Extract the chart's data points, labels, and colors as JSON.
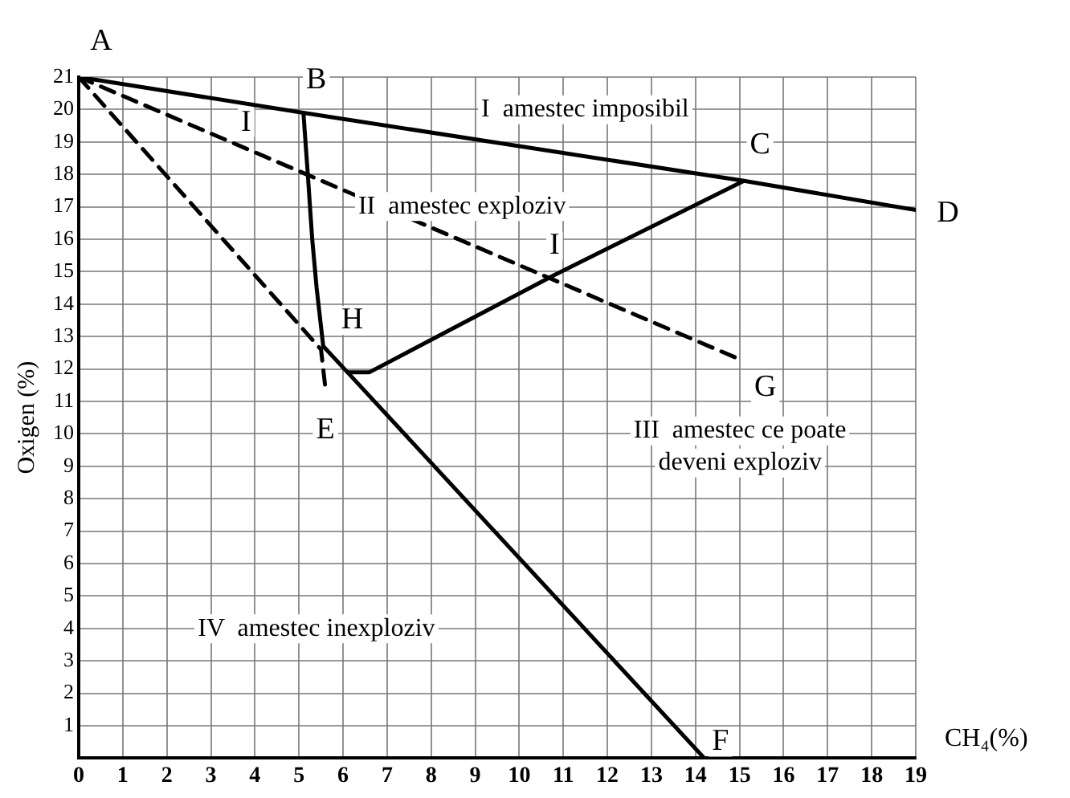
{
  "chart_data": {
    "type": "line",
    "xlabel": "CH₄(%)",
    "ylabel": "Oxigen (%)",
    "xlim": [
      0,
      19
    ],
    "ylim": [
      0,
      21
    ],
    "xticks": [
      0,
      1,
      2,
      3,
      4,
      5,
      6,
      7,
      8,
      9,
      10,
      11,
      12,
      13,
      14,
      15,
      16,
      17,
      18,
      19
    ],
    "yticks": [
      1,
      2,
      3,
      4,
      5,
      6,
      7,
      8,
      9,
      10,
      11,
      12,
      13,
      14,
      15,
      16,
      17,
      18,
      19,
      20,
      21
    ],
    "grid": true,
    "legend": false,
    "marker": "none",
    "tick_labels": "xy",
    "series": [
      {
        "color": "#000000",
        "line_style": "solid",
        "x": [
          0,
          5.1,
          15.1,
          19
        ],
        "values": [
          21,
          19.9,
          17.8,
          16.9
        ]
      },
      {
        "color": "#000000",
        "line_style": "solid",
        "x": [
          5.1,
          5.2,
          5.3,
          5.4,
          5.55,
          6.1,
          6.6,
          10.8,
          15.1
        ],
        "values": [
          19.9,
          18,
          16,
          14.5,
          12.7,
          11.9,
          11.9,
          14.9,
          17.8
        ]
      },
      {
        "color": "#000000",
        "line_style": "solid",
        "x": [
          6.1,
          14.2
        ],
        "values": [
          11.9,
          0
        ]
      },
      {
        "color": "#000000",
        "line_style": "dashed",
        "x": [
          0,
          15
        ],
        "values": [
          21,
          12.3
        ]
      },
      {
        "color": "#000000",
        "line_style": "dashed",
        "x": [
          0,
          5.5,
          5.6
        ],
        "values": [
          21,
          12.6,
          11.4
        ]
      }
    ],
    "annotations": [
      {
        "text": "A",
        "x": 0,
        "y": 21
      },
      {
        "text": "B",
        "x": 5.1,
        "y": 19.9
      },
      {
        "text": "C",
        "x": 15.1,
        "y": 17.8
      },
      {
        "text": "D",
        "x": 19,
        "y": 16.9
      },
      {
        "text": "E",
        "x": 5.6,
        "y": 11.4
      },
      {
        "text": "F",
        "x": 14.2,
        "y": 0
      },
      {
        "text": "G",
        "x": 15,
        "y": 12.3
      },
      {
        "text": "H",
        "x": 5.55,
        "y": 12.7
      },
      {
        "text": "I",
        "x": 3.8,
        "y": 18.8
      },
      {
        "text": "I",
        "x": 10.8,
        "y": 14.9
      },
      "I  amestec imposibil",
      "II  amestec exploziv",
      "III  amestec ce poate\ndeveni exploziv",
      "IV  amestec inexploziv"
    ]
  }
}
